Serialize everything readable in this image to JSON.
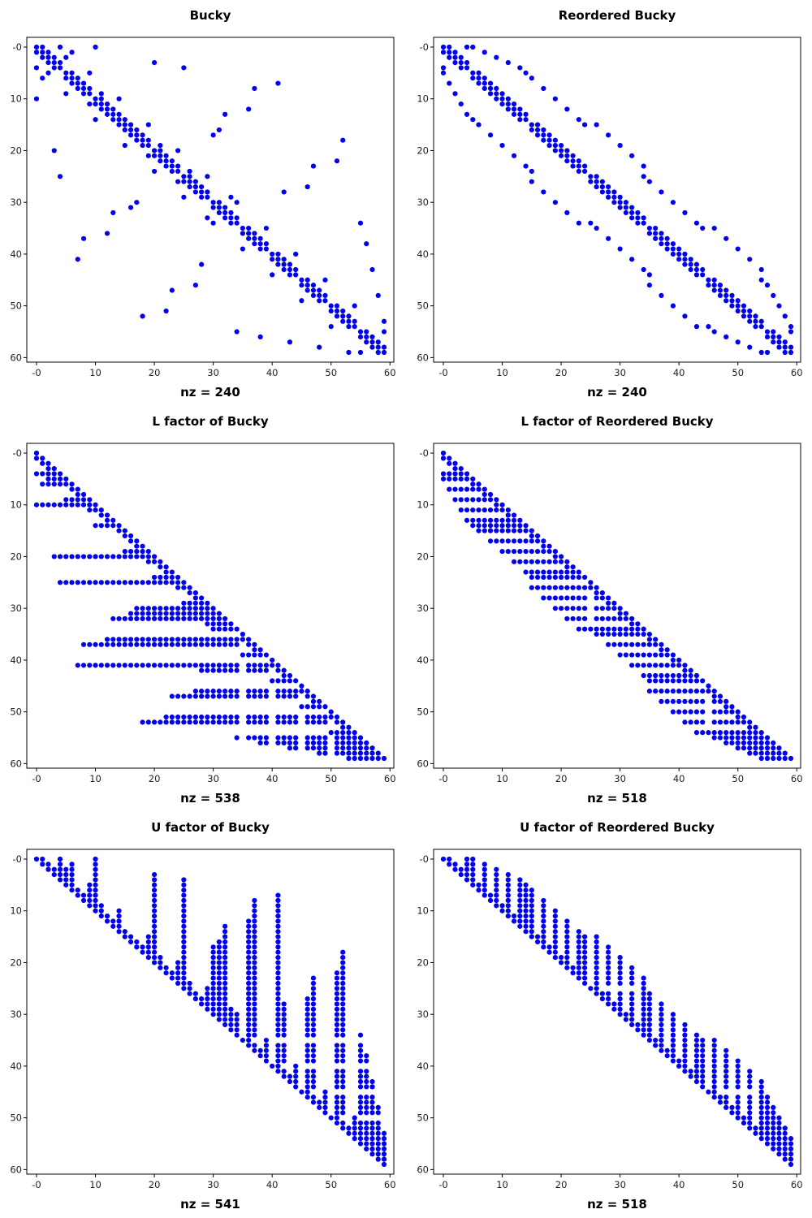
{
  "chart_data": [
    {
      "type": "scatter",
      "kind": "spy",
      "pattern": "bucky",
      "title": "Bucky",
      "nz_label": "nz = 240",
      "n": 60,
      "xlim": [
        0,
        59
      ],
      "ylim": [
        59,
        0
      ],
      "xticks": [
        "-0",
        "10",
        "20",
        "30",
        "40",
        "50",
        "60"
      ],
      "yticks": [
        "-0",
        "10",
        "20",
        "30",
        "40",
        "50",
        "60"
      ]
    },
    {
      "type": "scatter",
      "kind": "spy",
      "pattern": "bucky_reordered",
      "title": "Reordered Bucky",
      "nz_label": "nz = 240",
      "n": 60,
      "xlim": [
        0,
        59
      ],
      "ylim": [
        59,
        0
      ],
      "xticks": [
        "-0",
        "10",
        "20",
        "30",
        "40",
        "50",
        "60"
      ],
      "yticks": [
        "-0",
        "10",
        "20",
        "30",
        "40",
        "50",
        "60"
      ]
    },
    {
      "type": "scatter",
      "kind": "spy",
      "pattern": "L_bucky",
      "title": "L factor of Bucky",
      "nz_label": "nz = 538",
      "n": 60,
      "xlim": [
        0,
        59
      ],
      "ylim": [
        59,
        0
      ],
      "xticks": [
        "-0",
        "10",
        "20",
        "30",
        "40",
        "50",
        "60"
      ],
      "yticks": [
        "-0",
        "10",
        "20",
        "30",
        "40",
        "50",
        "60"
      ]
    },
    {
      "type": "scatter",
      "kind": "spy",
      "pattern": "L_reordered",
      "title": "L factor of Reordered Bucky",
      "nz_label": "nz = 518",
      "n": 60,
      "xlim": [
        0,
        59
      ],
      "ylim": [
        59,
        0
      ],
      "xticks": [
        "-0",
        "10",
        "20",
        "30",
        "40",
        "50",
        "60"
      ],
      "yticks": [
        "-0",
        "10",
        "20",
        "30",
        "40",
        "50",
        "60"
      ]
    },
    {
      "type": "scatter",
      "kind": "spy",
      "pattern": "U_bucky",
      "title": "U factor of Bucky",
      "nz_label": "nz = 541",
      "n": 60,
      "xlim": [
        0,
        59
      ],
      "ylim": [
        59,
        0
      ],
      "xticks": [
        "-0",
        "10",
        "20",
        "30",
        "40",
        "50",
        "60"
      ],
      "yticks": [
        "-0",
        "10",
        "20",
        "30",
        "40",
        "50",
        "60"
      ]
    },
    {
      "type": "scatter",
      "kind": "spy",
      "pattern": "U_reordered",
      "title": "U factor of Reordered Bucky",
      "nz_label": "nz = 518",
      "n": 60,
      "xlim": [
        0,
        59
      ],
      "ylim": [
        59,
        0
      ],
      "xticks": [
        "-0",
        "10",
        "20",
        "30",
        "40",
        "50",
        "60"
      ],
      "yticks": [
        "-0",
        "10",
        "20",
        "30",
        "40",
        "50",
        "60"
      ]
    }
  ],
  "marker_color": "#0000ee"
}
